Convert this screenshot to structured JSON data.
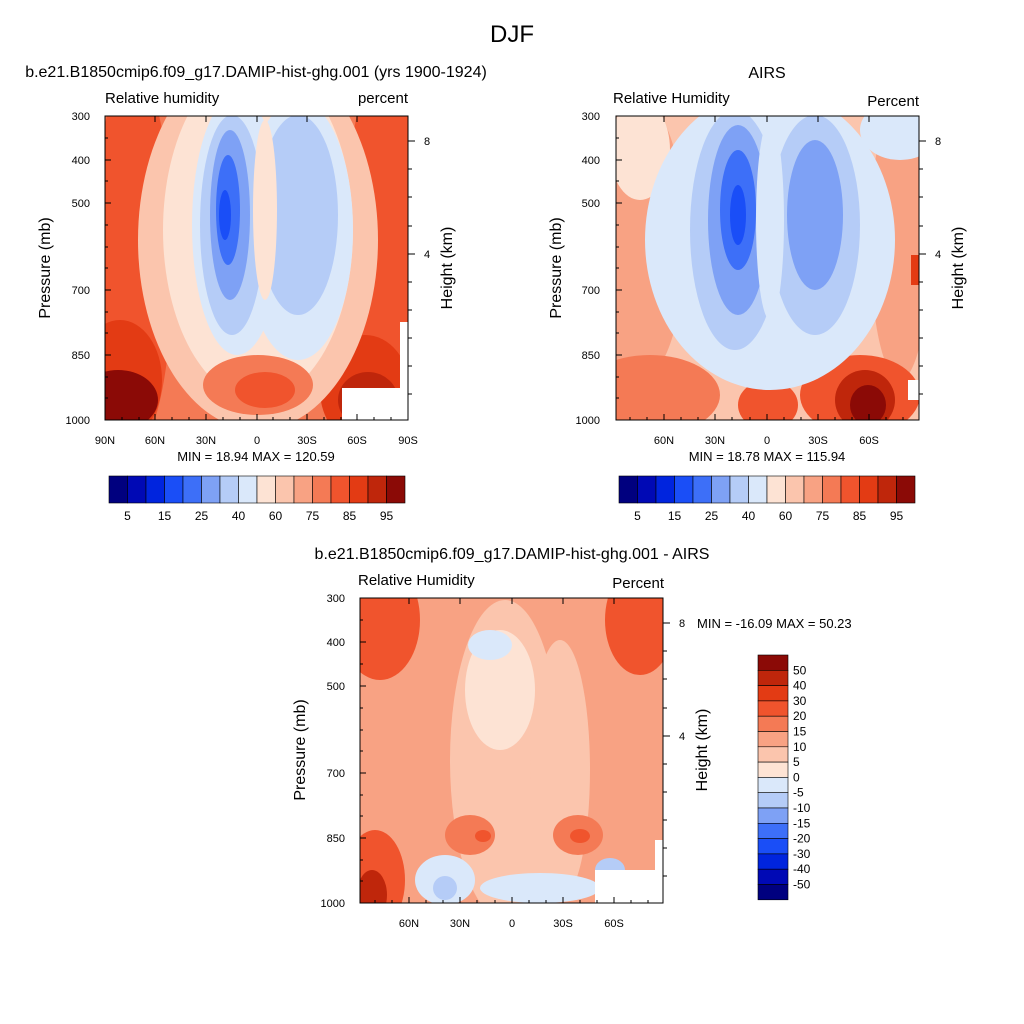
{
  "figure": {
    "suptitle": "DJF"
  },
  "colors": {
    "levels_fill": [
      "#00007f",
      "#0009b5",
      "#0024de",
      "#1a4ef7",
      "#3d6ff8",
      "#7ea1f5",
      "#b5ccf7",
      "#dae8fa",
      "#fde3d4",
      "#fbc5ad",
      "#f8a283",
      "#f47a55",
      "#f0542d",
      "#e33b14",
      "#bf260b",
      "#8b0a06"
    ],
    "missing": "#ffffff"
  },
  "chart_data": [
    {
      "type": "heatmap",
      "title": "b.e21.B1850cmip6.f09_g17.DAMIP-hist-ghg.001 (yrs 1900-1924)",
      "left_label": "Relative humidity",
      "right_label": "percent",
      "ylabel": "Pressure (mb)",
      "ylabel_right": "Height (km)",
      "x_ticks": [
        "90N",
        "60N",
        "30N",
        "0",
        "30S",
        "60S",
        "90S"
      ],
      "y_ticks": [
        "300",
        "400",
        "500",
        "700",
        "850",
        "1000"
      ],
      "y_right_ticks": [
        "8",
        "4"
      ],
      "y_range_mb": [
        300,
        1000
      ],
      "y_scale": "log",
      "x_range_deg": [
        90,
        -90
      ],
      "min_label": "MIN =  18.94  MAX = 120.59",
      "min": 18.94,
      "max": 120.59,
      "colorbar_labels": [
        "5",
        "15",
        "25",
        "40",
        "60",
        "75",
        "85",
        "95"
      ],
      "colorbar_orientation": "horizontal"
    },
    {
      "type": "heatmap",
      "title": "AIRS",
      "left_label": "Relative Humidity",
      "right_label": "Percent",
      "ylabel": "Pressure (mb)",
      "ylabel_right": "Height (km)",
      "x_ticks": [
        "60N",
        "30N",
        "0",
        "30S",
        "60S"
      ],
      "y_ticks": [
        "300",
        "400",
        "500",
        "700",
        "850",
        "1000"
      ],
      "y_right_ticks": [
        "8",
        "4"
      ],
      "y_range_mb": [
        300,
        1000
      ],
      "y_scale": "log",
      "min_label": "MIN =  18.78  MAX = 115.94",
      "min": 18.78,
      "max": 115.94,
      "colorbar_labels": [
        "5",
        "15",
        "25",
        "40",
        "60",
        "75",
        "85",
        "95"
      ],
      "colorbar_orientation": "horizontal"
    },
    {
      "type": "heatmap",
      "title": "b.e21.B1850cmip6.f09_g17.DAMIP-hist-ghg.001 - AIRS",
      "left_label": "Relative Humidity",
      "right_label": "Percent",
      "ylabel": "Pressure (mb)",
      "ylabel_right": "Height (km)",
      "x_ticks": [
        "60N",
        "30N",
        "0",
        "30S",
        "60S"
      ],
      "y_ticks": [
        "300",
        "400",
        "500",
        "700",
        "850",
        "1000"
      ],
      "y_right_ticks": [
        "8",
        "4"
      ],
      "y_range_mb": [
        300,
        1000
      ],
      "y_scale": "log",
      "min_label": "MIN = -16.09  MAX =  50.23",
      "min": -16.09,
      "max": 50.23,
      "colorbar_labels": [
        "50",
        "40",
        "30",
        "20",
        "15",
        "10",
        "5",
        "0",
        "-5",
        "-10",
        "-15",
        "-20",
        "-30",
        "-40",
        "-50"
      ],
      "colorbar_orientation": "vertical"
    }
  ]
}
